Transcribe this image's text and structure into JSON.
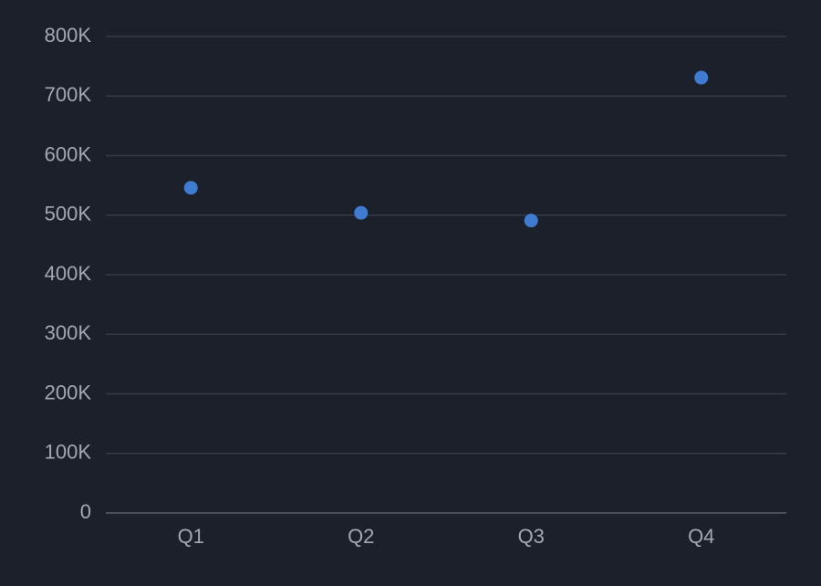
{
  "chart_data": {
    "type": "scatter",
    "categories": [
      "Q1",
      "Q2",
      "Q3",
      "Q4"
    ],
    "values": [
      546000,
      504000,
      491000,
      731000
    ],
    "color": "#3f7bd1",
    "ylim": [
      0,
      800000
    ],
    "yticks": [
      0,
      {
        "value": 100000,
        "label": "100K"
      },
      {
        "value": 200000,
        "label": "200K"
      },
      {
        "value": 300000,
        "label": "300K"
      },
      {
        "value": 400000,
        "label": "400K"
      },
      {
        "value": 500000,
        "label": "500K"
      },
      {
        "value": 600000,
        "label": "600K"
      },
      {
        "value": 700000,
        "label": "700K"
      },
      {
        "value": 800000,
        "label": "800K"
      }
    ],
    "grid": true
  }
}
